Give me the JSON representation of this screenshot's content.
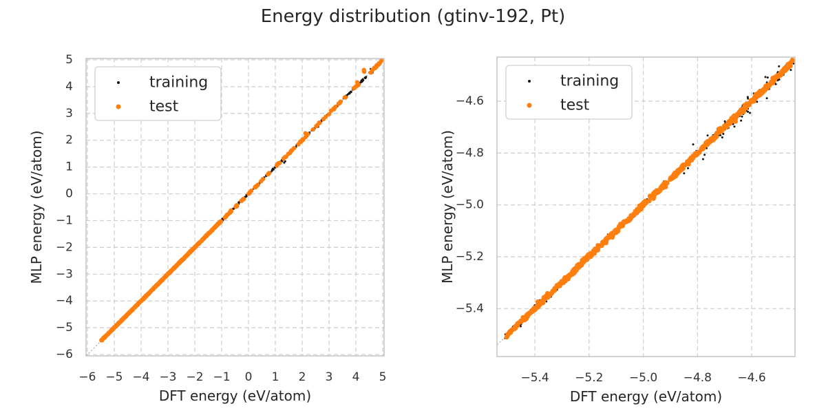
{
  "title": "Energy distribution (gtinv-192, Pt)",
  "colors": {
    "background": "#ffffff",
    "training": "#141414",
    "test": "#ff7f0e",
    "grid": "#cdcdcd",
    "spine": "#c4c4c4",
    "identity_line": "#9a9a9a",
    "text": "#262626",
    "tick_text": "#333333",
    "legend_border": "#d0d0d0",
    "legend_background": "#ffffff"
  },
  "chart_data": [
    {
      "type": "scatter",
      "title": "",
      "xlabel": "DFT energy (eV/atom)",
      "ylabel": "MLP energy (eV/atom)",
      "xlim": [
        -6.05,
        5.05
      ],
      "ylim": [
        -6.05,
        5.05
      ],
      "grid": true,
      "identity_line": true,
      "legend": {
        "position": "upper left",
        "entries": [
          "training",
          "test"
        ]
      },
      "xticks": {
        "values": [
          -6,
          -5,
          -4,
          -3,
          -2,
          -1,
          0,
          1,
          2,
          3,
          4,
          5
        ],
        "labels": [
          "−6",
          "−5",
          "−4",
          "−3",
          "−2",
          "−1",
          "0",
          "1",
          "2",
          "3",
          "4",
          "5"
        ]
      },
      "yticks": {
        "values": [
          -6,
          -5,
          -4,
          -3,
          -2,
          -1,
          0,
          1,
          2,
          3,
          4,
          5
        ],
        "labels": [
          "−6",
          "−5",
          "−4",
          "−3",
          "−2",
          "−1",
          "0",
          "1",
          "2",
          "3",
          "4",
          "5"
        ]
      },
      "series": [
        {
          "name": "training",
          "color": "#141414",
          "marker_radius": 1.5,
          "seed": 101,
          "segments": [
            {
              "x_min": -5.52,
              "x_max": -1.0,
              "count": 420,
              "y_sigma": 0.012
            },
            {
              "x_min": -1.0,
              "x_max": 4.97,
              "count": 330,
              "y_sigma": 0.02,
              "gaps": [
                [
                  -0.06,
                  0.07
                ],
                [
                  1.5,
                  1.58
                ],
                [
                  2.28,
                  2.36
                ],
                [
                  3.48,
                  3.54
                ],
                [
                  4.4,
                  4.5
                ]
              ]
            }
          ],
          "extra_points": [
            [
              1.33,
              1.16
            ],
            [
              1.37,
              1.21
            ],
            [
              2.6,
              2.5
            ],
            [
              4.55,
              4.66
            ],
            [
              4.62,
              4.52
            ]
          ]
        },
        {
          "name": "test",
          "color": "#ff7f0e",
          "marker_radius": 3.2,
          "seed": 202,
          "segments": [
            {
              "x_min": -5.5,
              "x_max": -1.02,
              "count": 520,
              "y_sigma": 0.008
            }
          ],
          "clusters": {
            "centers": [
              -0.86,
              -0.68,
              -0.45,
              -0.24,
              0.07,
              0.3,
              0.52,
              0.78,
              1.02,
              1.12,
              1.3,
              1.45,
              1.62,
              1.9,
              2.02,
              2.12,
              2.45,
              2.62,
              2.8,
              3.02,
              3.2,
              3.4,
              3.62,
              3.95,
              4.05,
              4.6,
              4.75,
              4.87
            ],
            "x_spread": 0.04,
            "y_sigma": 0.015,
            "min_points": 2,
            "max_points": 6
          },
          "extra_points": [
            [
              4.3,
              4.62
            ],
            [
              4.31,
              4.56
            ],
            [
              4.05,
              4.16
            ],
            [
              2.12,
              2.26
            ]
          ]
        }
      ]
    },
    {
      "type": "scatter",
      "title": "",
      "xlabel": "DFT energy (eV/atom)",
      "ylabel": "MLP energy (eV/atom)",
      "xlim": [
        -5.54,
        -4.44
      ],
      "ylim": [
        -5.585,
        -4.43
      ],
      "grid": true,
      "identity_line": true,
      "legend": {
        "position": "upper left",
        "entries": [
          "training",
          "test"
        ]
      },
      "xticks": {
        "values": [
          -5.4,
          -5.2,
          -5.0,
          -4.8,
          -4.6
        ],
        "labels": [
          "−5.4",
          "−5.2",
          "−5.0",
          "−4.8",
          "−4.6"
        ]
      },
      "yticks": {
        "values": [
          -5.4,
          -5.2,
          -5.0,
          -4.8,
          -4.6
        ],
        "labels": [
          "−5.4",
          "−5.2",
          "−5.0",
          "−4.8",
          "−4.6"
        ]
      },
      "series": [
        {
          "name": "training",
          "color": "#141414",
          "marker_radius": 1.5,
          "seed": 303,
          "segments": [
            {
              "x_min": -5.51,
              "x_max": -4.445,
              "count": 520,
              "y_sigma": 0.006
            },
            {
              "x_min": -4.85,
              "x_max": -4.45,
              "count": 90,
              "y_sigma": 0.018,
              "y_bias": -0.006
            }
          ]
        },
        {
          "name": "test",
          "color": "#ff7f0e",
          "marker_radius": 3.4,
          "seed": 404,
          "segments": [
            {
              "x_min": -5.505,
              "x_max": -4.448,
              "count": 700,
              "y_sigma": 0.0045
            }
          ]
        }
      ]
    }
  ]
}
